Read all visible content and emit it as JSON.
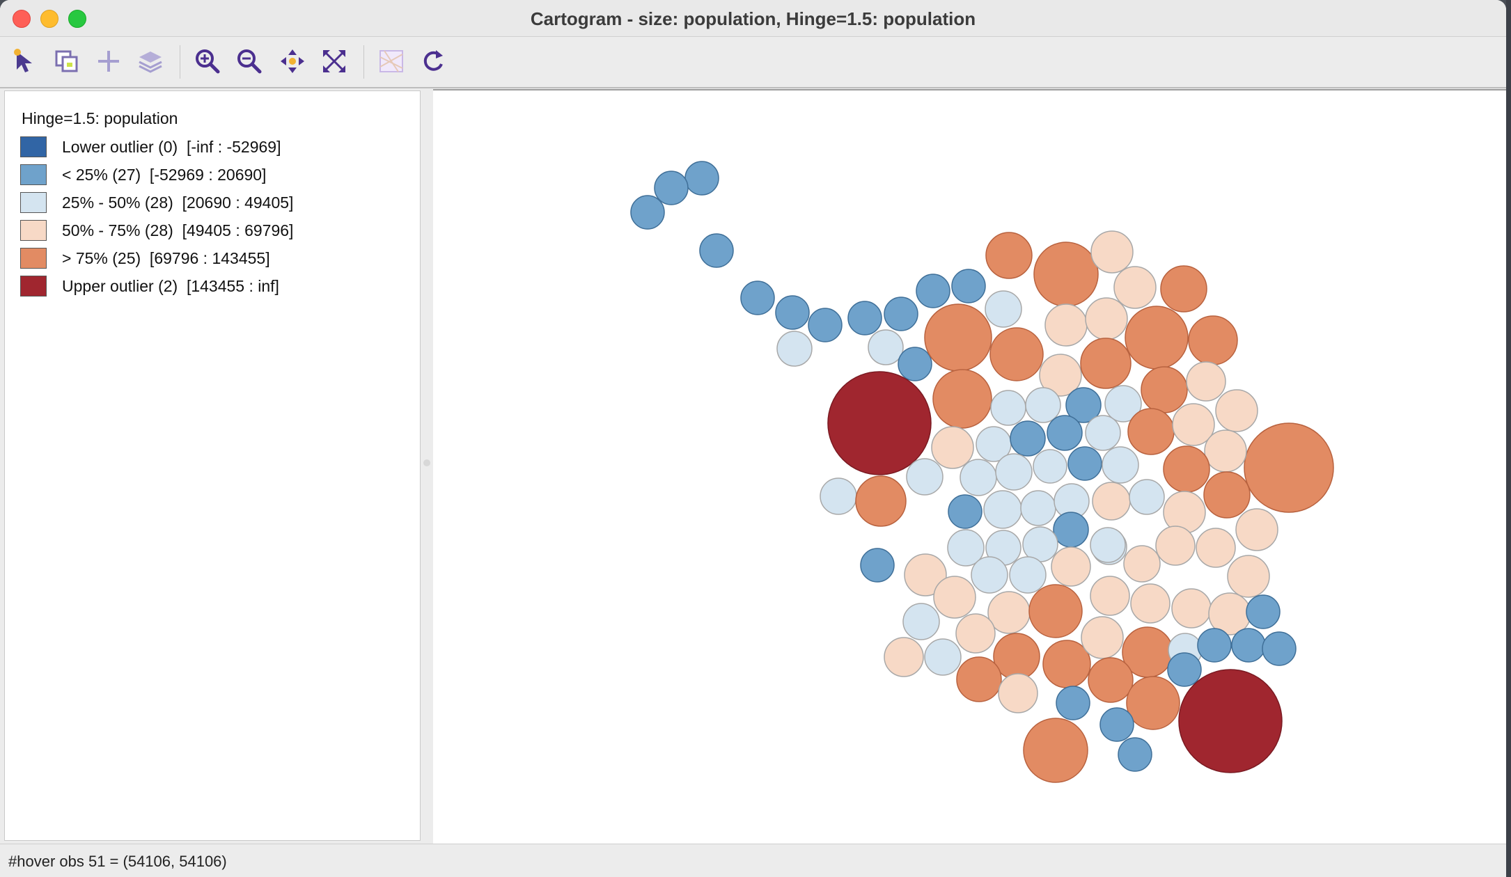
{
  "window": {
    "title": "Cartogram - size: population, Hinge=1.5: population"
  },
  "toolbar": {
    "buttons": [
      {
        "name": "select-tool-icon",
        "x": 36,
        "color": "#4b3a8f"
      },
      {
        "name": "copy-layer-icon",
        "x": 96,
        "color": "#7b6fb0"
      },
      {
        "name": "add-icon",
        "x": 156,
        "color": "#9a93c4"
      },
      {
        "name": "layers-icon",
        "x": 216,
        "color": "#9a93c4"
      },
      {
        "name": "zoom-in-icon",
        "x": 298,
        "color": "#4b2f8f"
      },
      {
        "name": "zoom-out-icon",
        "x": 358,
        "color": "#4b2f8f"
      },
      {
        "name": "pan-icon",
        "x": 420,
        "color": "#4b2f8f"
      },
      {
        "name": "full-extent-icon",
        "x": 480,
        "color": "#4b2f8f"
      },
      {
        "name": "basemap-icon",
        "x": 562,
        "color": "#c9b8e6"
      },
      {
        "name": "refresh-icon",
        "x": 622,
        "color": "#4b2f8f"
      }
    ]
  },
  "legend": {
    "title": "Hinge=1.5: population",
    "items": [
      {
        "label": "Lower outlier (0)  [-inf : -52969]",
        "color": "#3165a5"
      },
      {
        "label": "< 25% (27)  [-52969 : 20690]",
        "color": "#6fa2cb"
      },
      {
        "label": "25% - 50% (28)  [20690 : 49405]",
        "color": "#d4e4f0"
      },
      {
        "label": "50% - 75% (28)  [49405 : 69796]",
        "color": "#f7d9c6"
      },
      {
        "label": "> 75% (25)  [69796 : 143455]",
        "color": "#e28b63"
      },
      {
        "label": "Upper outlier (2)  [143455 : inf]",
        "color": "#a0262f"
      }
    ]
  },
  "map": {
    "colors": {
      "lower": "#6fa2cb",
      "q2": "#d4e4f0",
      "q3": "#f7d9c6",
      "upper": "#e28b63",
      "outlier": "#a0262f"
    }
  },
  "status": {
    "text": "#hover obs 51 = (54106, 54106)"
  }
}
